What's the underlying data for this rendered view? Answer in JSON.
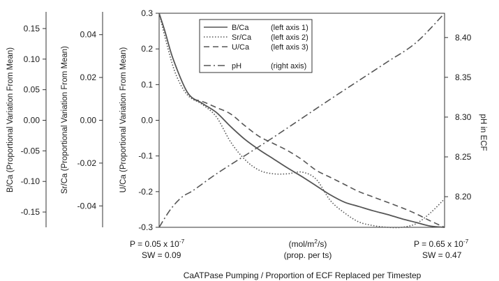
{
  "chart_data": {
    "type": "line",
    "title": "",
    "xlabel": "CaATPase Pumping / Proportion of ECF Replaced per Timestep",
    "x_range": [
      0,
      1
    ],
    "x_annotations": {
      "left_line1": "P = 0.05 x 10",
      "left_line1_exp": "-7",
      "left_line2": "SW = 0.09",
      "center_line1_pre": "(mol/m",
      "center_line1_exp": "2",
      "center_line1_post": "/s)",
      "center_line2": "(prop. per ts)",
      "right_line1": "P = 0.65 x 10",
      "right_line1_exp": "-7",
      "right_line2": "SW = 0.47"
    },
    "axes": {
      "b_ca": {
        "label": "B/Ca (Proportional Variation From Mean)",
        "ticks": [
          "0.15",
          "0.10",
          "0.05",
          "0.00",
          "-0.05",
          "-0.10",
          "-0.15"
        ],
        "tick_values": [
          0.15,
          0.1,
          0.05,
          0.0,
          -0.05,
          -0.1,
          -0.15
        ],
        "range": [
          -0.175,
          0.175
        ]
      },
      "sr_ca": {
        "label": "Sr/Ca (Proportional Variation From Mean)",
        "ticks": [
          "0.04",
          "0.02",
          "0.00",
          "-0.02",
          "-0.04"
        ],
        "tick_values": [
          0.04,
          0.02,
          0.0,
          -0.02,
          -0.04
        ],
        "range": [
          -0.05,
          0.05
        ]
      },
      "u_ca": {
        "label": "U/Ca (Proportional Variation From Mean)",
        "ticks": [
          "0.3",
          "0.2",
          "0.1",
          "0.0",
          "-0.1",
          "-0.2",
          "-0.3"
        ],
        "tick_values": [
          0.3,
          0.2,
          0.1,
          0.0,
          -0.1,
          -0.2,
          -0.3
        ],
        "range": [
          -0.3,
          0.3
        ]
      },
      "ph": {
        "label": "pH in ECF",
        "ticks": [
          "8.40",
          "8.35",
          "8.30",
          "8.25",
          "8.20"
        ],
        "tick_values": [
          8.4,
          8.35,
          8.3,
          8.25,
          8.2
        ],
        "range": [
          8.1615,
          8.4305
        ]
      }
    },
    "series": [
      {
        "name": "B/Ca",
        "legend_note": "(left axis 1)",
        "axis": "b_ca",
        "style": "solid",
        "color": "#555555",
        "x": [
          0,
          0.02,
          0.05,
          0.1,
          0.15,
          0.2,
          0.25,
          0.3,
          0.35,
          0.4,
          0.45,
          0.5,
          0.55,
          0.6,
          0.65,
          0.7,
          0.75,
          0.8,
          0.85,
          0.9,
          0.95,
          1.0
        ],
        "y": [
          0.175,
          0.146,
          0.099,
          0.045,
          0.028,
          0.013,
          -0.01,
          -0.031,
          -0.048,
          -0.063,
          -0.078,
          -0.092,
          -0.107,
          -0.122,
          -0.134,
          -0.141,
          -0.148,
          -0.154,
          -0.161,
          -0.167,
          -0.173,
          -0.175
        ]
      },
      {
        "name": "Sr/Ca",
        "legend_note": "(left axis 2)",
        "axis": "sr_ca",
        "style": "dotted",
        "color": "#555555",
        "x": [
          0,
          0.03,
          0.06,
          0.1,
          0.15,
          0.2,
          0.25,
          0.3,
          0.35,
          0.4,
          0.45,
          0.5,
          0.55,
          0.6,
          0.65,
          0.7,
          0.75,
          0.8,
          0.85,
          0.9,
          0.95,
          1.0
        ],
        "y": [
          0.05,
          0.034,
          0.021,
          0.0117,
          0.0075,
          0.0017,
          -0.01,
          -0.0183,
          -0.0233,
          -0.025,
          -0.025,
          -0.0242,
          -0.0275,
          -0.0375,
          -0.0433,
          -0.0475,
          -0.0492,
          -0.05,
          -0.05,
          -0.0483,
          -0.0433,
          -0.0367
        ]
      },
      {
        "name": "U/Ca",
        "legend_note": "(left axis 3)",
        "axis": "u_ca",
        "style": "dashed",
        "color": "#555555",
        "x": [
          0.12,
          0.15,
          0.2,
          0.25,
          0.3,
          0.35,
          0.4,
          0.45,
          0.5,
          0.55,
          0.6,
          0.65,
          0.7,
          0.75,
          0.8,
          0.85,
          0.9,
          0.95,
          1.0
        ],
        "y": [
          0.058,
          0.053,
          0.036,
          0.018,
          -0.015,
          -0.045,
          -0.065,
          -0.085,
          -0.11,
          -0.14,
          -0.16,
          -0.18,
          -0.2,
          -0.215,
          -0.23,
          -0.245,
          -0.262,
          -0.282,
          -0.3
        ]
      },
      {
        "name": "pH",
        "legend_note": "(right axis)",
        "axis": "ph",
        "style": "dashdot",
        "color": "#555555",
        "x": [
          0,
          0.04,
          0.08,
          0.12,
          0.2,
          0.3,
          0.4,
          0.5,
          0.6,
          0.7,
          0.8,
          0.9,
          1.0
        ],
        "y": [
          8.1615,
          8.184,
          8.1995,
          8.208,
          8.2285,
          8.2515,
          8.2745,
          8.2985,
          8.3225,
          8.346,
          8.3695,
          8.3935,
          8.4305
        ]
      }
    ],
    "legend": {
      "position": "top-center"
    },
    "grid": false
  }
}
